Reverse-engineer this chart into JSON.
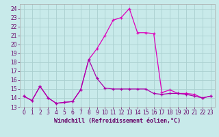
{
  "xlabel": "Windchill (Refroidissement éolien,°C)",
  "background_color": "#c8eaea",
  "grid_color": "#aacfcf",
  "line1_color": "#aa00aa",
  "line2_color": "#dd00bb",
  "xlim": [
    -0.5,
    23.5
  ],
  "ylim": [
    13,
    24.5
  ],
  "yticks": [
    13,
    14,
    15,
    16,
    17,
    18,
    19,
    20,
    21,
    22,
    23,
    24
  ],
  "xticks": [
    0,
    1,
    2,
    3,
    4,
    5,
    6,
    7,
    8,
    9,
    10,
    11,
    12,
    13,
    14,
    15,
    16,
    17,
    18,
    19,
    20,
    21,
    22,
    23
  ],
  "line1_x": [
    0,
    1,
    2,
    3,
    4,
    5,
    6,
    7,
    8,
    9,
    10,
    11,
    12,
    13,
    14,
    15,
    16,
    17,
    18,
    19,
    20,
    21,
    22,
    23
  ],
  "line1_y": [
    14.2,
    13.7,
    15.3,
    14.0,
    13.4,
    13.5,
    13.6,
    14.9,
    18.3,
    16.2,
    15.1,
    15.0,
    15.0,
    15.0,
    15.0,
    15.0,
    14.5,
    14.4,
    14.5,
    14.5,
    14.4,
    14.2,
    14.0,
    14.2
  ],
  "line2_x": [
    0,
    1,
    2,
    3,
    4,
    5,
    6,
    7,
    8,
    9,
    10,
    11,
    12,
    13,
    14,
    15,
    16,
    17,
    18,
    19,
    20,
    21,
    22,
    23
  ],
  "line2_y": [
    14.2,
    13.7,
    15.3,
    14.0,
    13.4,
    13.5,
    13.6,
    14.9,
    18.3,
    19.5,
    21.0,
    22.7,
    23.0,
    24.0,
    21.3,
    21.3,
    21.2,
    14.6,
    14.9,
    14.5,
    14.5,
    14.4,
    14.0,
    14.2
  ],
  "tick_fontsize": 5.5,
  "label_fontsize": 6,
  "tick_color": "#660066",
  "label_color": "#660066"
}
